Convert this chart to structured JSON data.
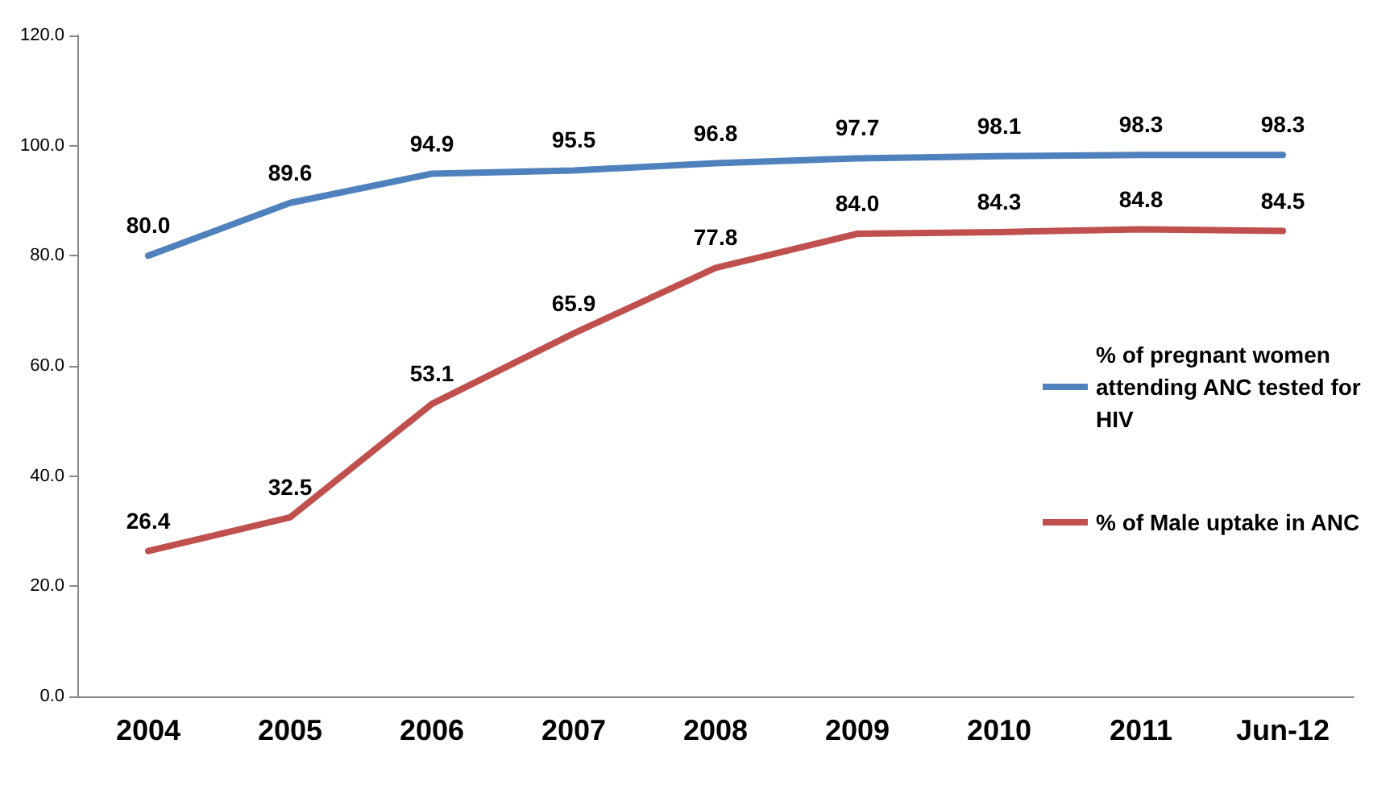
{
  "chart_data": {
    "type": "line",
    "categories": [
      "2004",
      "2005",
      "2006",
      "2007",
      "2008",
      "2009",
      "2010",
      "2011",
      "Jun-12"
    ],
    "series": [
      {
        "name": "% of pregnant women attending ANC tested for HIV",
        "color": "#4f81bd",
        "values": [
          80.0,
          89.6,
          94.9,
          95.5,
          96.8,
          97.7,
          98.1,
          98.3,
          98.3
        ],
        "value_labels": [
          "80.0",
          "89.6",
          "94.9",
          "95.5",
          "96.8",
          "97.7",
          "98.1",
          "98.3",
          "98.3"
        ]
      },
      {
        "name": "% of Male uptake in ANC",
        "color": "#c0504d",
        "values": [
          26.4,
          32.5,
          53.1,
          65.9,
          77.8,
          84.0,
          84.3,
          84.8,
          84.5
        ],
        "value_labels": [
          "26.4",
          "32.5",
          "53.1",
          "65.9",
          "77.8",
          "84.0",
          "84.3",
          "84.8",
          "84.5"
        ]
      }
    ],
    "ylim": [
      0,
      120
    ],
    "yticks": [
      {
        "value": 0,
        "label": "0.0"
      },
      {
        "value": 20,
        "label": "20.0"
      },
      {
        "value": 40,
        "label": "40.0"
      },
      {
        "value": 60,
        "label": "60.0"
      },
      {
        "value": 80,
        "label": "80.0"
      },
      {
        "value": 100,
        "label": "100.0"
      },
      {
        "value": 120,
        "label": "120.0"
      }
    ],
    "grid": false,
    "legend": "right",
    "marker": "none",
    "line_style": "solid"
  }
}
